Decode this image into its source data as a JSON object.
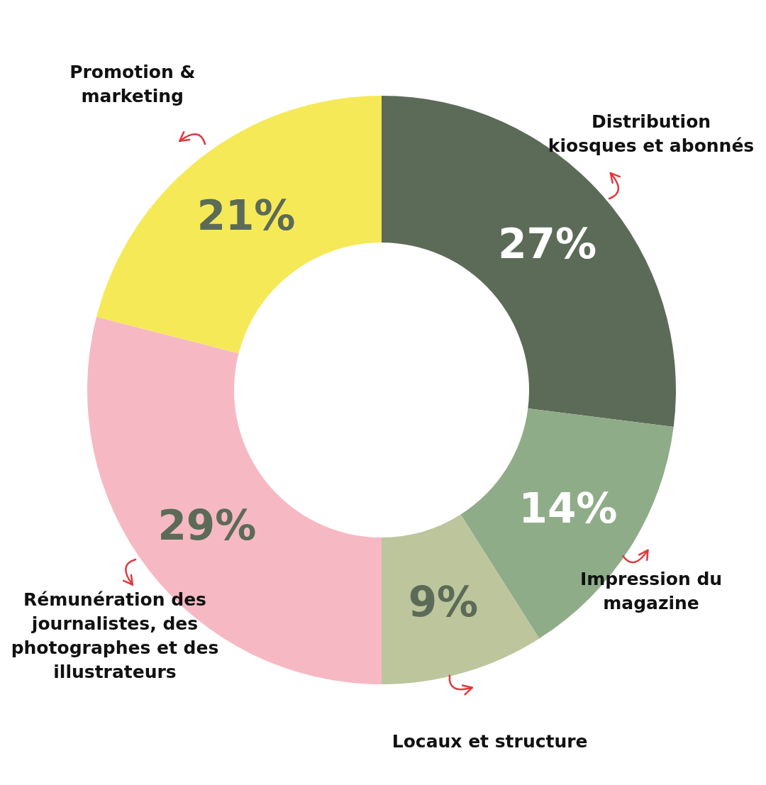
{
  "chart_data": {
    "type": "donut",
    "categories": [
      "Distribution kiosques et abonnés",
      "Impression du magazine",
      "Locaux et structure",
      "Rémunération des journalistes, des photographes et des illustrateurs",
      "Promotion & marketing"
    ],
    "values": [
      27,
      14,
      9,
      29,
      21
    ],
    "colors": [
      "#5c6b57",
      "#8fac88",
      "#bcc59c",
      "#f6b9c4",
      "#f6e957"
    ],
    "value_labels": [
      "27%",
      "14%",
      "9%",
      "29%",
      "21%"
    ]
  }
}
